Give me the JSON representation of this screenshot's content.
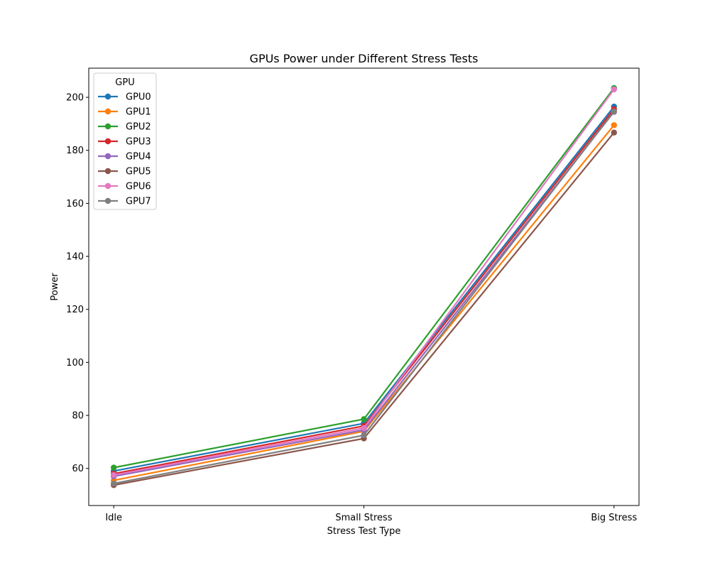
{
  "chart_data": {
    "type": "line",
    "title": "GPUs Power under Different Stress Tests",
    "xlabel": "Stress Test Type",
    "ylabel": "Power",
    "categories": [
      "Idle",
      "Small Stress",
      "Big Stress"
    ],
    "ylim": [
      46,
      211
    ],
    "yticks": [
      "60",
      "80",
      "100",
      "120",
      "140",
      "160",
      "180",
      "200"
    ],
    "grid": false,
    "legend": {
      "title": "GPU",
      "placement": "top-left"
    },
    "series": [
      {
        "name": "GPU0",
        "color": "#1f77b4",
        "values": [
          59.0,
          77.0,
          196.5
        ]
      },
      {
        "name": "GPU1",
        "color": "#ff7f0e",
        "values": [
          55.5,
          74.0,
          189.5
        ]
      },
      {
        "name": "GPU2",
        "color": "#2ca02c",
        "values": [
          60.3,
          78.6,
          203.5
        ]
      },
      {
        "name": "GPU3",
        "color": "#d62728",
        "values": [
          58.0,
          76.0,
          195.5
        ]
      },
      {
        "name": "GPU4",
        "color": "#9467bd",
        "values": [
          57.0,
          74.5,
          194.5
        ]
      },
      {
        "name": "GPU5",
        "color": "#8c564b",
        "values": [
          53.7,
          71.3,
          186.7
        ]
      },
      {
        "name": "GPU6",
        "color": "#e377c2",
        "values": [
          57.5,
          75.2,
          203.0
        ]
      },
      {
        "name": "GPU7",
        "color": "#7f7f7f",
        "values": [
          54.3,
          72.5,
          194.7
        ]
      }
    ]
  }
}
